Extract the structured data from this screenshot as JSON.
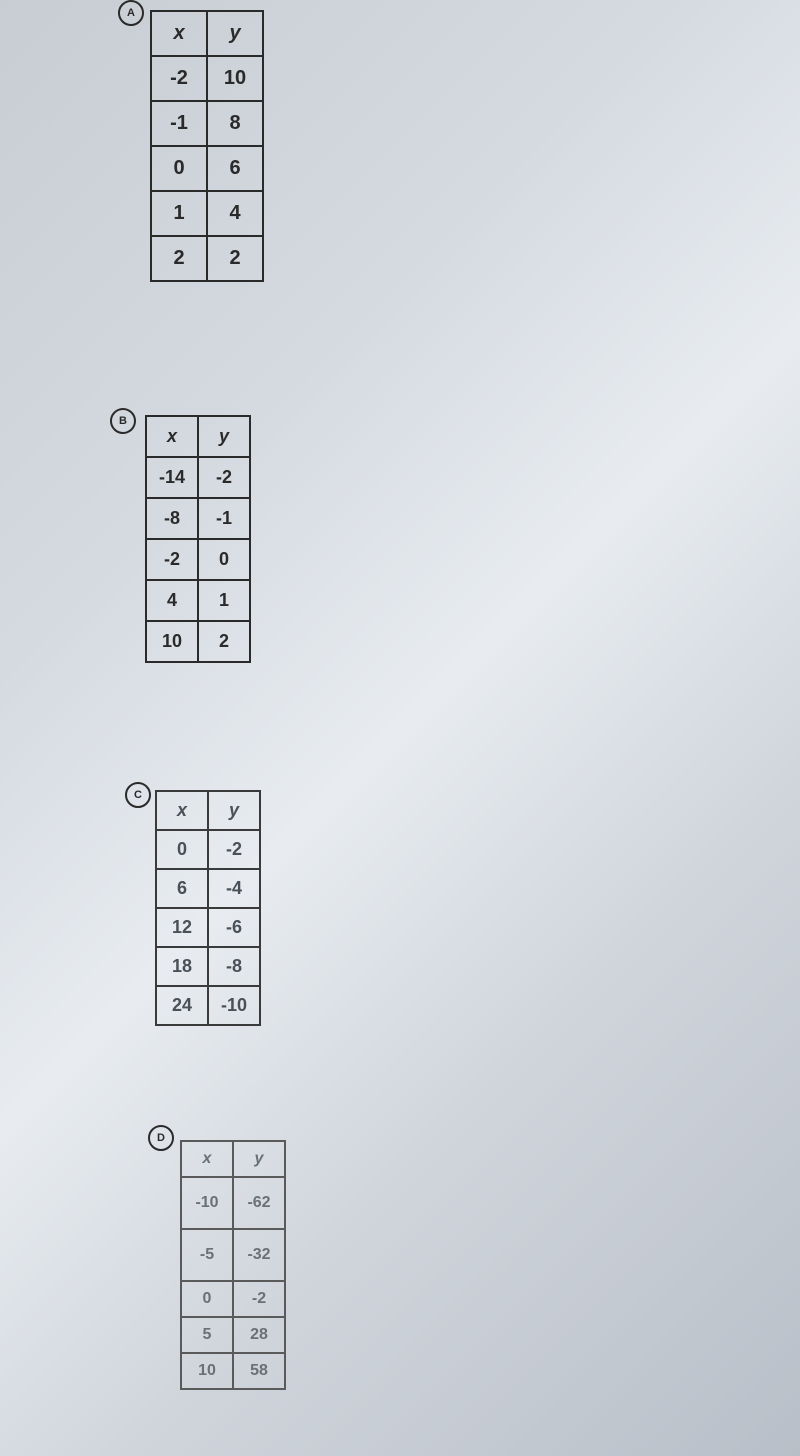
{
  "options": {
    "a": {
      "label": "A",
      "columns": [
        "x",
        "y"
      ],
      "rows": [
        [
          "-2",
          "10"
        ],
        [
          "-1",
          "8"
        ],
        [
          "0",
          "6"
        ],
        [
          "1",
          "4"
        ],
        [
          "2",
          "2"
        ]
      ]
    },
    "b": {
      "label": "B",
      "columns": [
        "x",
        "y"
      ],
      "rows": [
        [
          "-14",
          "-2"
        ],
        [
          "-8",
          "-1"
        ],
        [
          "-2",
          "0"
        ],
        [
          "4",
          "1"
        ],
        [
          "10",
          "2"
        ]
      ]
    },
    "c": {
      "label": "C",
      "columns": [
        "x",
        "y"
      ],
      "rows": [
        [
          "0",
          "-2"
        ],
        [
          "6",
          "-4"
        ],
        [
          "12",
          "-6"
        ],
        [
          "18",
          "-8"
        ],
        [
          "24",
          "-10"
        ]
      ]
    },
    "d": {
      "label": "D",
      "columns": [
        "x",
        "y"
      ],
      "rows": [
        [
          "-10",
          "-62"
        ],
        [
          "-5",
          "-32"
        ],
        [
          "0",
          "-2"
        ],
        [
          "5",
          "28"
        ],
        [
          "10",
          "58"
        ]
      ]
    }
  },
  "styling": {
    "border_color": "#2a2a2a",
    "text_color": "#2a2a2a",
    "faded_text_color": "#6a7078",
    "background_gradient": [
      "#c8cdd4",
      "#d5dae1",
      "#e8ecf0",
      "#d0d5dc",
      "#b8bfc8"
    ],
    "font_family": "Arial",
    "header_font_style": "italic",
    "cell_font_weight": "bold"
  }
}
